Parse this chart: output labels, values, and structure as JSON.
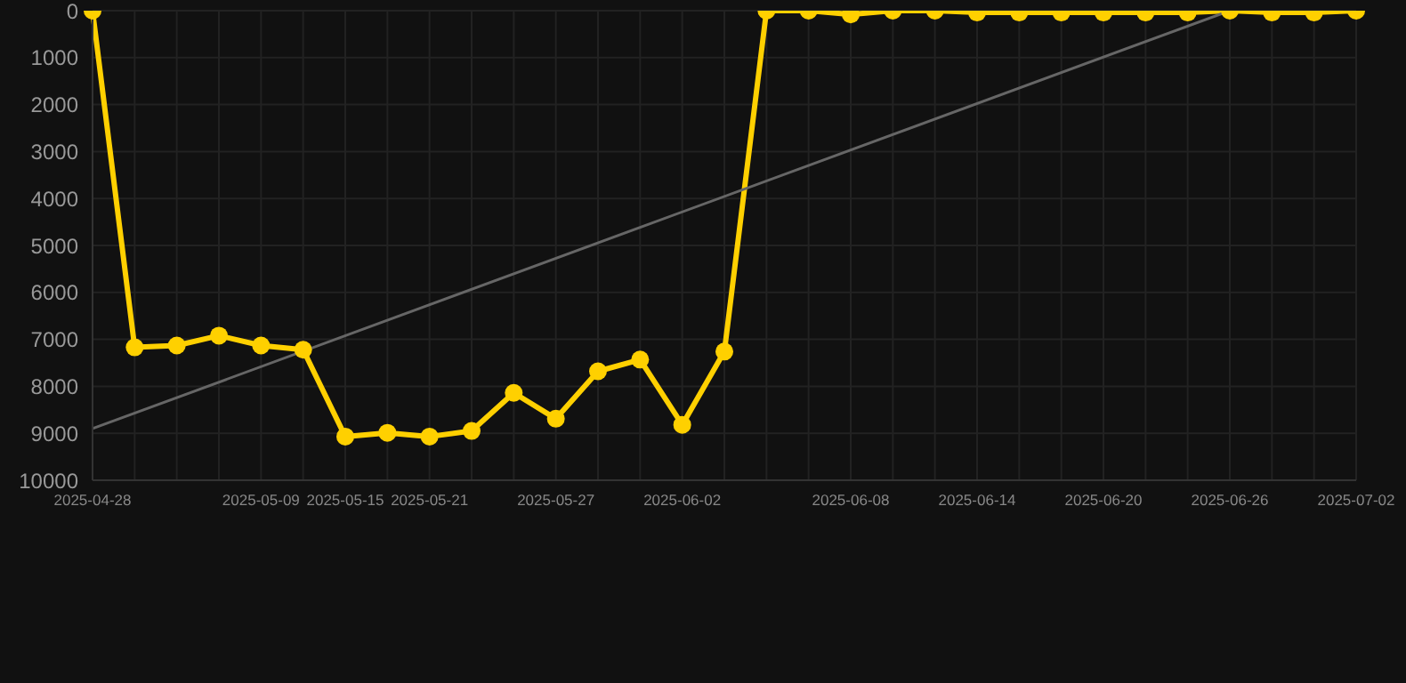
{
  "chart_data": {
    "type": "line",
    "categories": [
      "2025-04-28",
      null,
      null,
      null,
      "2025-05-09",
      null,
      "2025-05-15",
      null,
      "2025-05-21",
      null,
      null,
      "2025-05-27",
      null,
      null,
      "2025-06-02",
      null,
      null,
      null,
      "2025-06-08",
      null,
      null,
      "2025-06-14",
      null,
      null,
      "2025-06-20",
      null,
      null,
      "2025-06-26",
      null,
      null,
      "2025-07-02"
    ],
    "series": [
      {
        "color": "#ffd000",
        "marker": "circle",
        "values": [
          0,
          7170,
          7130,
          6920,
          7130,
          7220,
          9070,
          8990,
          9070,
          8950,
          8140,
          8690,
          7680,
          7430,
          8820,
          7260,
          0,
          0,
          80,
          0,
          0,
          40,
          40,
          40,
          40,
          40,
          40,
          0,
          40,
          40,
          0
        ]
      },
      {
        "color": "#666666",
        "marker": "none",
        "values": [
          8900,
          null,
          null,
          null,
          null,
          null,
          null,
          null,
          null,
          null,
          null,
          null,
          null,
          null,
          null,
          null,
          null,
          null,
          null,
          null,
          null,
          null,
          null,
          null,
          null,
          null,
          null,
          0,
          null,
          null,
          null
        ]
      }
    ],
    "ylim": [
      10000,
      0
    ],
    "yticks": [
      0,
      1000,
      2000,
      3000,
      4000,
      5000,
      6000,
      7000,
      8000,
      9000,
      10000
    ],
    "grid": true,
    "legend": false
  }
}
